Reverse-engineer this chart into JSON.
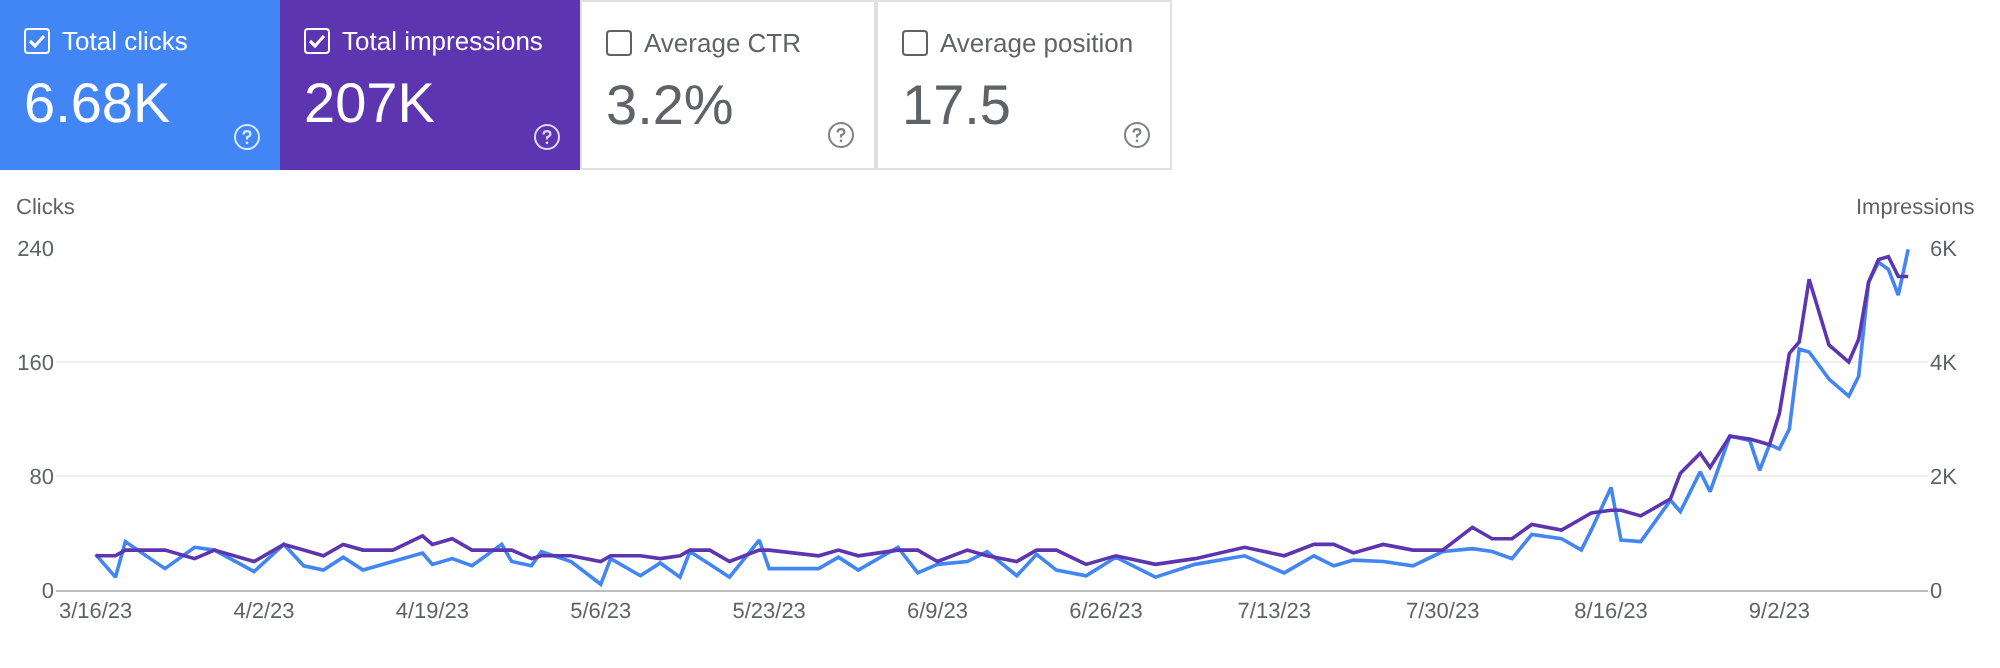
{
  "chart_data": {
    "type": "line",
    "ylabel": "Clicks",
    "y2label": "Impressions",
    "annotations": [
      "6.68K",
      "207K",
      "Average CTR",
      "3.2%",
      "Average position",
      "17.5"
    ],
    "x": [
      "2023-03-16",
      "2023-03-18",
      "2023-03-19",
      "2023-03-23",
      "2023-03-26",
      "2023-03-28",
      "2023-04-01",
      "2023-04-04",
      "2023-04-06",
      "2023-04-08",
      "2023-04-10",
      "2023-04-12",
      "2023-04-15",
      "2023-04-18",
      "2023-04-19",
      "2023-04-21",
      "2023-04-23",
      "2023-04-26",
      "2023-04-27",
      "2023-04-29",
      "2023-04-30",
      "2023-05-03",
      "2023-05-06",
      "2023-05-07",
      "2023-05-10",
      "2023-05-12",
      "2023-05-14",
      "2023-05-15",
      "2023-05-17",
      "2023-05-19",
      "2023-05-22",
      "2023-05-23",
      "2023-05-28",
      "2023-05-30",
      "2023-06-01",
      "2023-06-05",
      "2023-06-07",
      "2023-06-09",
      "2023-06-12",
      "2023-06-14",
      "2023-06-17",
      "2023-06-19",
      "2023-06-21",
      "2023-06-24",
      "2023-06-27",
      "2023-07-01",
      "2023-07-05",
      "2023-07-10",
      "2023-07-14",
      "2023-07-17",
      "2023-07-19",
      "2023-07-21",
      "2023-07-24",
      "2023-07-27",
      "2023-07-30",
      "2023-08-02",
      "2023-08-04",
      "2023-08-06",
      "2023-08-08",
      "2023-08-11",
      "2023-08-13",
      "2023-08-14",
      "2023-08-16",
      "2023-08-17",
      "2023-08-19",
      "2023-08-22",
      "2023-08-23",
      "2023-08-25",
      "2023-08-26",
      "2023-08-28",
      "2023-08-30",
      "2023-08-31",
      "2023-09-01",
      "2023-09-02",
      "2023-09-03",
      "2023-09-04",
      "2023-09-05",
      "2023-09-07",
      "2023-09-09",
      "2023-09-10",
      "2023-09-11",
      "2023-09-12",
      "2023-09-13",
      "2023-09-14",
      "2023-09-15"
    ],
    "series": [
      {
        "name": "Total clicks",
        "color": "#4285f4",
        "values": [
          25,
          9,
          34,
          15,
          30,
          28,
          13,
          32,
          17,
          14,
          23,
          14,
          20,
          26,
          18,
          22,
          17,
          32,
          20,
          17,
          27,
          20,
          4,
          22,
          10,
          19,
          9,
          27,
          18,
          9,
          35,
          15,
          15,
          23,
          14,
          30,
          12,
          18,
          20,
          27,
          10,
          25,
          14,
          10,
          23,
          9,
          18,
          24,
          12,
          24,
          17,
          21,
          20,
          17,
          27,
          29,
          27,
          22,
          39,
          36,
          28,
          42,
          72,
          35,
          34,
          63,
          55,
          83,
          69,
          108,
          105,
          84,
          102,
          99,
          113,
          169,
          167,
          148,
          136,
          150,
          216,
          230,
          225,
          207,
          239
        ]
      },
      {
        "name": "Total impressions",
        "color": "#5e35b1",
        "axis": "y2",
        "values": [
          600,
          600,
          700,
          700,
          550,
          700,
          500,
          800,
          700,
          600,
          800,
          700,
          700,
          950,
          800,
          900,
          700,
          700,
          700,
          550,
          600,
          600,
          500,
          600,
          600,
          550,
          600,
          700,
          700,
          500,
          700,
          700,
          600,
          700,
          600,
          700,
          700,
          500,
          700,
          600,
          500,
          700,
          700,
          450,
          600,
          450,
          550,
          750,
          600,
          800,
          800,
          650,
          800,
          700,
          700,
          1100,
          900,
          900,
          1150,
          1050,
          1250,
          1350,
          1400,
          1400,
          1300,
          1600,
          2050,
          2400,
          2150,
          2700,
          2650,
          2600,
          2550,
          3100,
          4150,
          4350,
          5450,
          4300,
          4000,
          4400,
          5400,
          5800,
          5850,
          5500,
          5500
        ]
      }
    ],
    "xlim": [
      "2023-03-12",
      "2023-09-17"
    ],
    "xticks": [
      {
        "value": "2023-03-16",
        "label": "3/16/23"
      },
      {
        "value": "2023-04-02",
        "label": "4/2/23"
      },
      {
        "value": "2023-04-19",
        "label": "4/19/23"
      },
      {
        "value": "2023-05-06",
        "label": "5/6/23"
      },
      {
        "value": "2023-05-23",
        "label": "5/23/23"
      },
      {
        "value": "2023-06-09",
        "label": "6/9/23"
      },
      {
        "value": "2023-06-26",
        "label": "6/26/23"
      },
      {
        "value": "2023-07-13",
        "label": "7/13/23"
      },
      {
        "value": "2023-07-30",
        "label": "7/30/23"
      },
      {
        "value": "2023-08-16",
        "label": "8/16/23"
      },
      {
        "value": "2023-09-02",
        "label": "9/2/23"
      }
    ],
    "ylim": [
      0,
      240
    ],
    "yticks": [
      0,
      80,
      160,
      240
    ],
    "y2lim": [
      0,
      6000
    ],
    "y2ticks": [
      0,
      {
        "value": 2000,
        "label": "2K"
      },
      {
        "value": 4000,
        "label": "4K"
      },
      {
        "value": 6000,
        "label": "6K"
      }
    ],
    "grid": "y",
    "legend": "top left",
    "marker": "none",
    "line_style": "solid"
  }
}
